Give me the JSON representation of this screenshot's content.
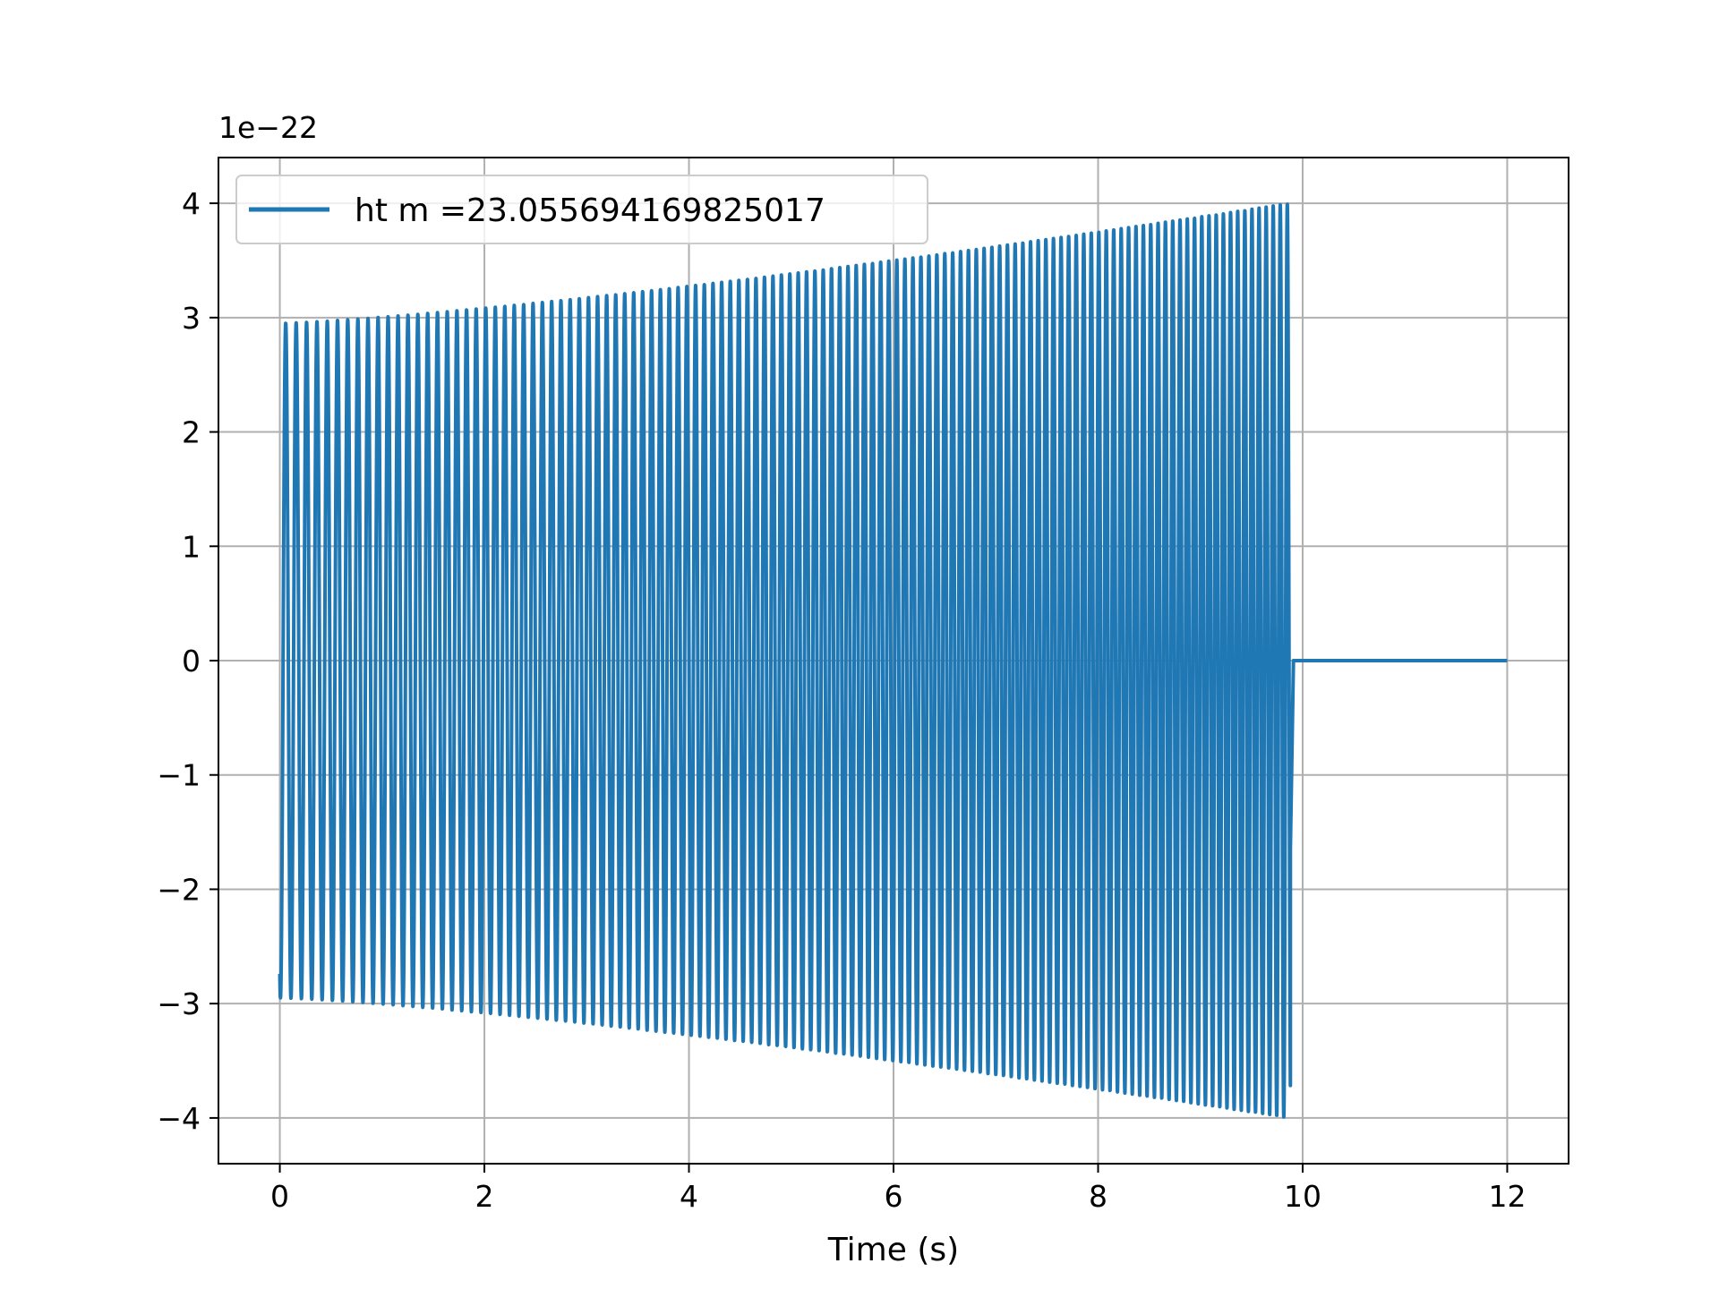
{
  "chart_data": {
    "type": "line",
    "title": "",
    "xlabel": "Time (s)",
    "ylabel": "",
    "y_offset_label": "1e−22",
    "xlim": [
      -0.6,
      12.6
    ],
    "ylim": [
      -4.4,
      4.4
    ],
    "xticks": [
      0,
      2,
      4,
      6,
      8,
      10,
      12
    ],
    "xtick_labels": [
      "0",
      "2",
      "4",
      "6",
      "8",
      "10",
      "12"
    ],
    "yticks": [
      -4,
      -3,
      -2,
      -1,
      0,
      1,
      2,
      3,
      4
    ],
    "ytick_labels": [
      "−4",
      "−3",
      "−2",
      "−1",
      "0",
      "1",
      "2",
      "3",
      "4"
    ],
    "grid": true,
    "legend_position": "top-left",
    "colors": {
      "series": "#1f77b4",
      "grid": "#b0b0b0"
    },
    "series": [
      {
        "name": "ht m =23.055694169825017",
        "signal": "chirp",
        "start_time": 0,
        "merger_time": 9.88,
        "end_time": 12,
        "start_amplitude": 2.95,
        "merger_amplitude": 4.0,
        "cycles": 120,
        "post_merger_value": 0
      }
    ]
  }
}
